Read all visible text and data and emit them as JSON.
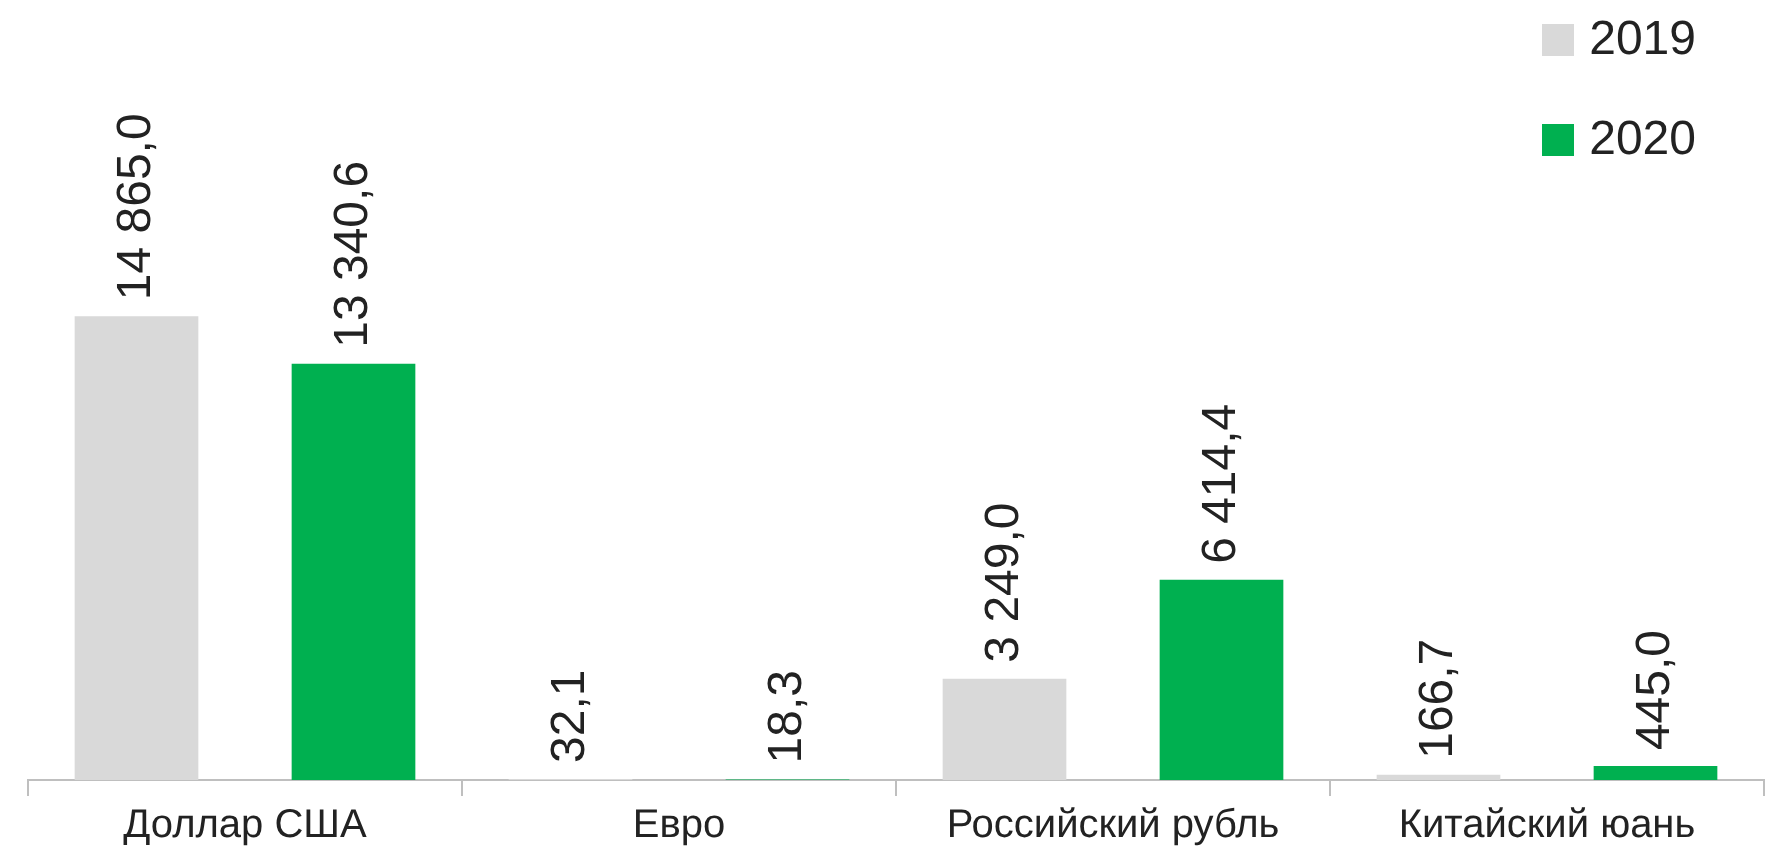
{
  "chart_data": {
    "type": "bar",
    "categories": [
      "Доллар США",
      "Евро",
      "Российский рубль",
      "Китайский юань"
    ],
    "series": [
      {
        "name": "2019",
        "color": "#d9d9d9",
        "values": [
          14865.0,
          32.1,
          3249.0,
          166.7
        ],
        "value_labels": [
          "14 865,0",
          "32,1",
          "3 249,0",
          "166,7"
        ]
      },
      {
        "name": "2020",
        "color": "#00b050",
        "values": [
          13340.6,
          18.3,
          6414.4,
          445.0
        ],
        "value_labels": [
          "13 340,6",
          "18,3",
          "6 414,4",
          "445,0"
        ]
      }
    ],
    "legend": "top right",
    "grid": false
  }
}
